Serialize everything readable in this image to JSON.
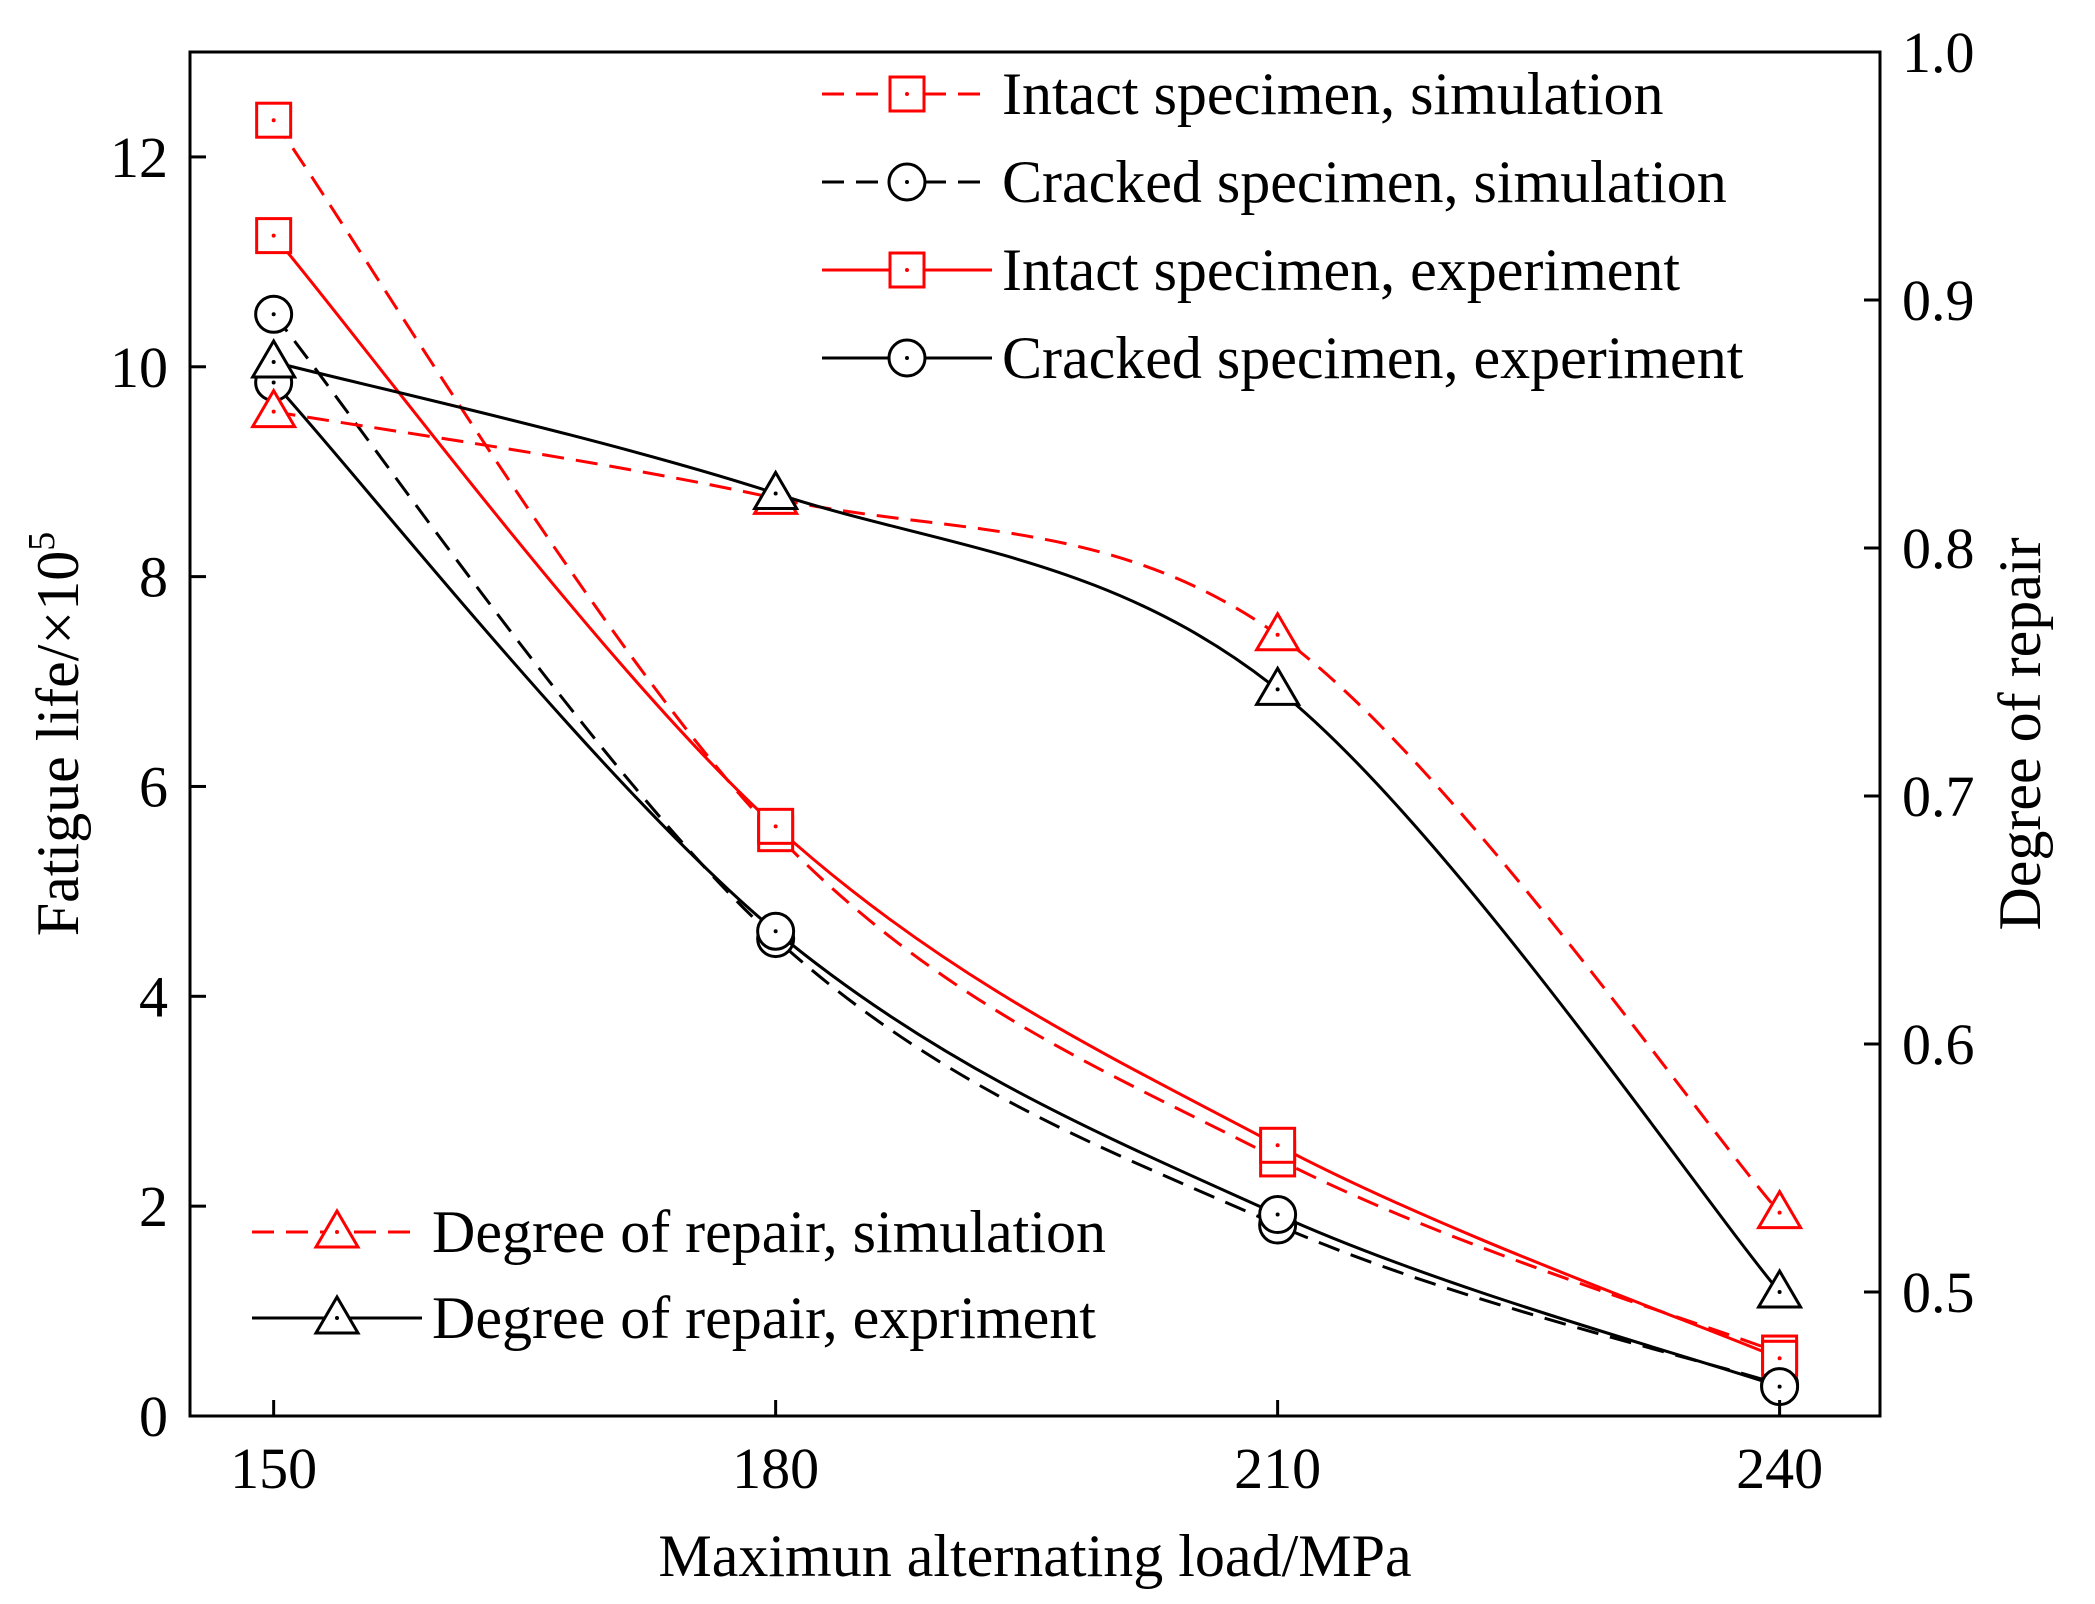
{
  "chart_data": {
    "type": "line",
    "x": [
      150,
      180,
      210,
      240
    ],
    "xlabel": "Maximun alternating load/MPa",
    "ylabel": "Fatigue life/×10",
    "ylabel_superscript": "5",
    "y2label": "Degree of repair",
    "xlim": [
      145,
      246
    ],
    "ylim": [
      0,
      13
    ],
    "y2lim": [
      0.45,
      1.0
    ],
    "xticks": [
      "150",
      "180",
      "210",
      "240"
    ],
    "yticks": [
      "0",
      "2",
      "4",
      "6",
      "8",
      "10",
      "12"
    ],
    "y2ticks": [
      "0.5",
      "0.6",
      "0.7",
      "0.8",
      "0.9",
      "1.0"
    ],
    "series": [
      {
        "name": "Intact specimen, simulation",
        "axis": "left",
        "color": "#ff0000",
        "dash": "dashed",
        "marker": "square",
        "values": [
          12.35,
          5.55,
          2.45,
          0.6
        ]
      },
      {
        "name": "Cracked specimen, simulation",
        "axis": "left",
        "color": "#000000",
        "dash": "dashed",
        "marker": "circle",
        "values": [
          10.5,
          4.55,
          1.82,
          0.3
        ]
      },
      {
        "name": "Intact specimen, experiment",
        "axis": "left",
        "color": "#ff0000",
        "dash": "solid",
        "marker": "square",
        "values": [
          11.25,
          5.62,
          2.58,
          0.55
        ]
      },
      {
        "name": "Cracked specimen, experiment",
        "axis": "left",
        "color": "#000000",
        "dash": "solid",
        "marker": "circle",
        "values": [
          9.85,
          4.62,
          1.92,
          0.28
        ]
      },
      {
        "name": "Degree of repair, simulation",
        "axis": "right",
        "color": "#ff0000",
        "dash": "dashed",
        "marker": "triangle",
        "values": [
          0.855,
          0.82,
          0.765,
          0.532
        ]
      },
      {
        "name": "Degree of repair, expriment",
        "axis": "right",
        "color": "#000000",
        "dash": "solid",
        "marker": "triangle",
        "values": [
          0.875,
          0.822,
          0.743,
          0.5
        ]
      }
    ],
    "legend_top": {
      "position": "top-right",
      "items": [
        "Intact specimen, simulation",
        "Cracked specimen, simulation",
        "Intact specimen, experiment",
        "Cracked specimen, experiment"
      ]
    },
    "legend_bottom": {
      "position": "bottom-left",
      "items": [
        "Degree of repair, simulation",
        "Degree of repair, expriment"
      ]
    }
  }
}
